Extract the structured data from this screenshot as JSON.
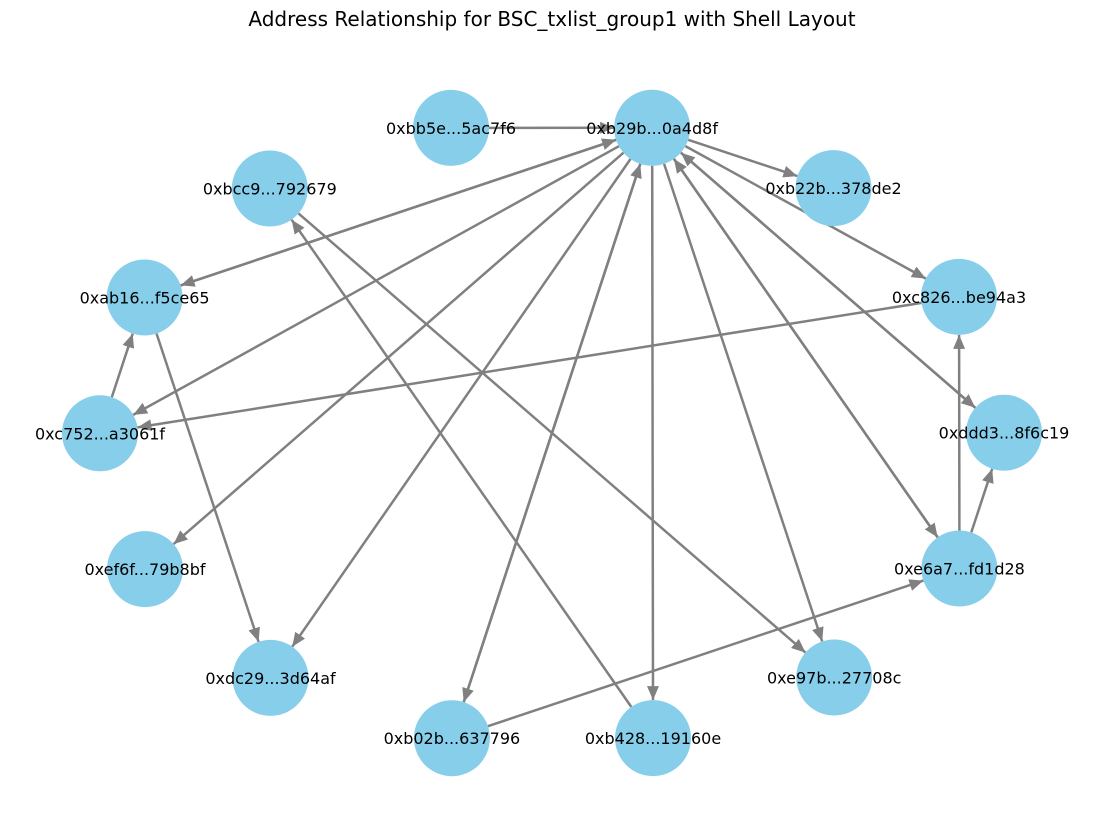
{
  "title": "Address Relationship for BSC_txlist_group1 with Shell Layout",
  "colors": {
    "node_fill": "#87CEEB",
    "edge_stroke": "#808080",
    "label_text": "#000000",
    "background": "#FFFFFF"
  },
  "graph": {
    "layout": "shell",
    "directed": true,
    "nodes": [
      {
        "id": "n0",
        "label": "0xb29b...0a4d8f"
      },
      {
        "id": "n1",
        "label": "0xbb5e...5ac7f6"
      },
      {
        "id": "n2",
        "label": "0xbcc9...792679"
      },
      {
        "id": "n3",
        "label": "0xab16...f5ce65"
      },
      {
        "id": "n4",
        "label": "0xc752...a3061f"
      },
      {
        "id": "n5",
        "label": "0xef6f...79b8bf"
      },
      {
        "id": "n6",
        "label": "0xdc29...3d64af"
      },
      {
        "id": "n7",
        "label": "0xb02b...637796"
      },
      {
        "id": "n8",
        "label": "0xb428...19160e"
      },
      {
        "id": "n9",
        "label": "0xe97b...27708c"
      },
      {
        "id": "n10",
        "label": "0xe6a7...fd1d28"
      },
      {
        "id": "n11",
        "label": "0xddd3...8f6c19"
      },
      {
        "id": "n12",
        "label": "0xc826...be94a3"
      },
      {
        "id": "n13",
        "label": "0xb22b...378de2"
      }
    ],
    "edges": [
      {
        "source": "n1",
        "target": "n0"
      },
      {
        "source": "n0",
        "target": "n13"
      },
      {
        "source": "n0",
        "target": "n12"
      },
      {
        "source": "n0",
        "target": "n11"
      },
      {
        "source": "n0",
        "target": "n10"
      },
      {
        "source": "n0",
        "target": "n9"
      },
      {
        "source": "n0",
        "target": "n8"
      },
      {
        "source": "n0",
        "target": "n7"
      },
      {
        "source": "n0",
        "target": "n6"
      },
      {
        "source": "n0",
        "target": "n5"
      },
      {
        "source": "n0",
        "target": "n4"
      },
      {
        "source": "n0",
        "target": "n3"
      },
      {
        "source": "n3",
        "target": "n0"
      },
      {
        "source": "n7",
        "target": "n0"
      },
      {
        "source": "n10",
        "target": "n0"
      },
      {
        "source": "n11",
        "target": "n0"
      },
      {
        "source": "n12",
        "target": "n4"
      },
      {
        "source": "n4",
        "target": "n3"
      },
      {
        "source": "n3",
        "target": "n6"
      },
      {
        "source": "n2",
        "target": "n9"
      },
      {
        "source": "n8",
        "target": "n2"
      },
      {
        "source": "n7",
        "target": "n10"
      },
      {
        "source": "n10",
        "target": "n12"
      },
      {
        "source": "n10",
        "target": "n11"
      }
    ]
  }
}
